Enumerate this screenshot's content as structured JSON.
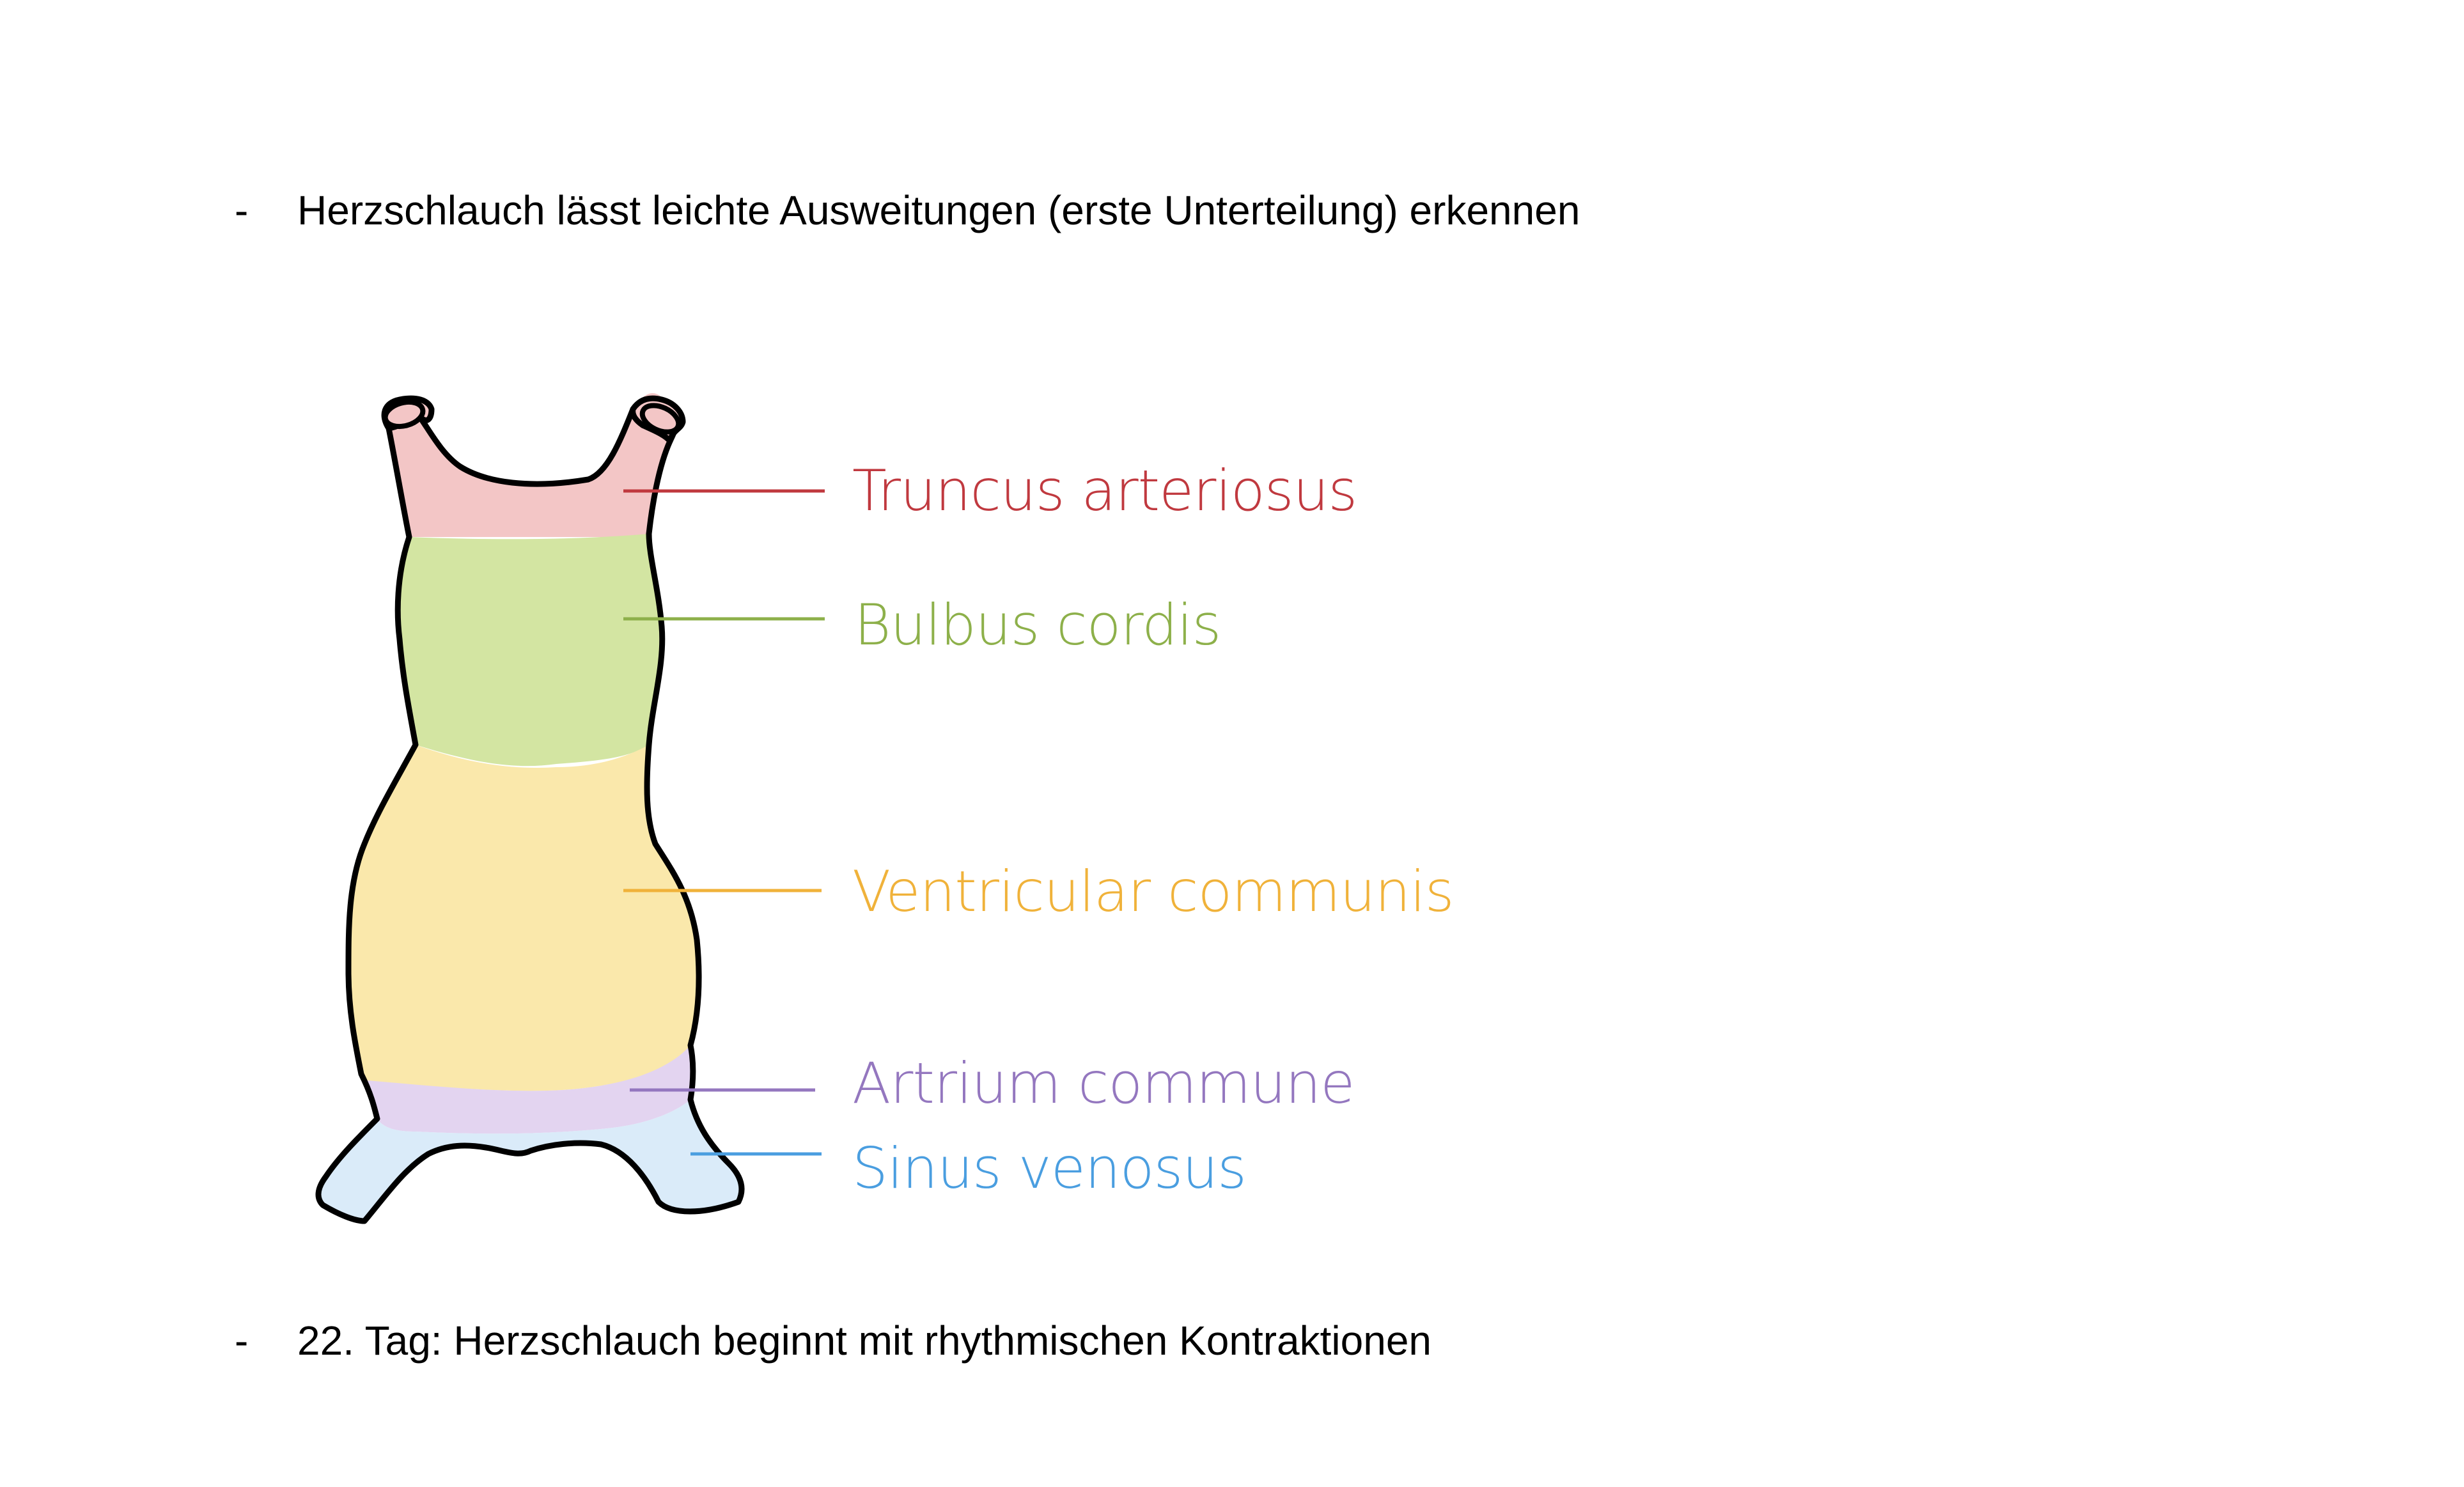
{
  "bullets": [
    {
      "marker": "-",
      "text": "Herzschlauch lässt leichte Ausweitungen (erste Unterteilung) erkennen"
    },
    {
      "marker": "-",
      "text": "22. Tag: Herzschlauch beginnt mit rhythmischen Kontraktionen"
    }
  ],
  "diagram": {
    "labels": [
      {
        "text": "Truncus arteriosus",
        "color": "#c0393f"
      },
      {
        "text": "Bulbus cordis",
        "color": "#8db04a"
      },
      {
        "text": "Ventricular communis",
        "color": "#f0b23a"
      },
      {
        "text": "Artrium commune",
        "color": "#9477bf"
      },
      {
        "text": "Sinus venosus",
        "color": "#4a9ee0"
      }
    ],
    "region_colors": {
      "truncus": "#f3c6c6",
      "bulbus": "#d3e5a2",
      "ventricle": "#fae8ab",
      "atrium": "#e3d4f0",
      "sinus": "#daebf9"
    }
  }
}
